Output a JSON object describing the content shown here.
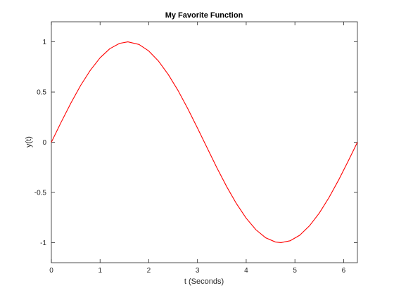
{
  "chart_data": {
    "type": "line",
    "title": "My Favorite Function",
    "xlabel": "t (Seconds)",
    "ylabel": "y(t)",
    "xlim": [
      0,
      6.2832
    ],
    "ylim": [
      -1.2,
      1.2
    ],
    "x_ticks": [
      0,
      1,
      2,
      3,
      4,
      5,
      6
    ],
    "x_tick_labels": [
      "0",
      "1",
      "2",
      "3",
      "4",
      "5",
      "6"
    ],
    "y_ticks": [
      -1,
      -0.5,
      0,
      0.5,
      1
    ],
    "y_tick_labels": [
      "-1",
      "-0.5",
      "0",
      "0.5",
      "1"
    ],
    "grid": false,
    "box": true,
    "series": [
      {
        "color": "#ff0000",
        "x": [
          0,
          0.2,
          0.4,
          0.6,
          0.8,
          1.0,
          1.2,
          1.4,
          1.5708,
          1.8,
          2.0,
          2.2,
          2.4,
          2.6,
          2.8,
          3.0,
          3.1416,
          3.4,
          3.6,
          3.8,
          4.0,
          4.2,
          4.4,
          4.6,
          4.7124,
          4.9,
          5.1,
          5.3,
          5.5,
          5.7,
          5.9,
          6.1,
          6.2832
        ],
        "y": [
          0,
          0.199,
          0.389,
          0.565,
          0.717,
          0.841,
          0.932,
          0.985,
          1.0,
          0.974,
          0.909,
          0.808,
          0.675,
          0.516,
          0.335,
          0.141,
          0.0,
          -0.256,
          -0.443,
          -0.612,
          -0.757,
          -0.872,
          -0.952,
          -0.994,
          -1.0,
          -0.982,
          -0.926,
          -0.832,
          -0.706,
          -0.551,
          -0.374,
          -0.182,
          0.0
        ]
      }
    ]
  }
}
